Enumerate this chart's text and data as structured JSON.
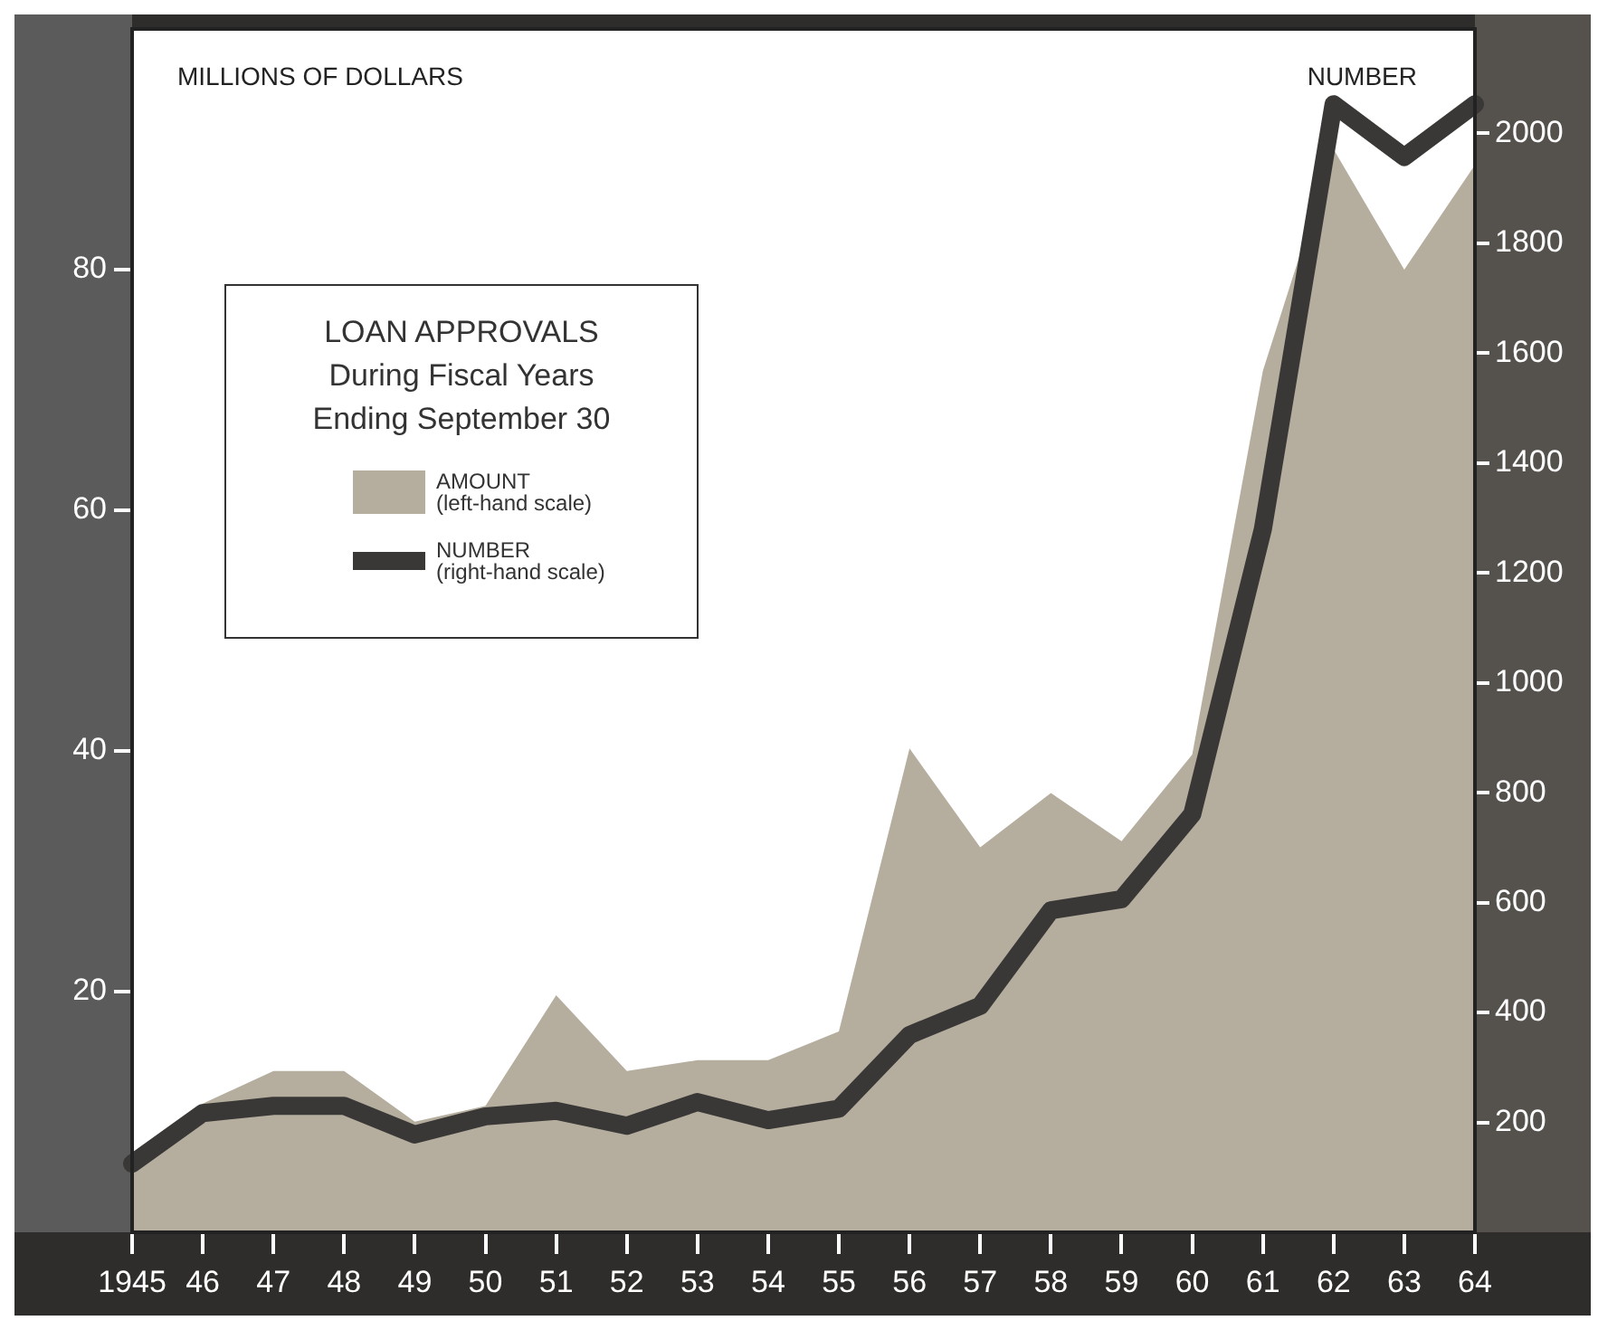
{
  "chart_data": {
    "type": "area",
    "legend_title": "LOAN APPROVALS\nDuring Fiscal Years\nEnding September 30",
    "ylabel": "MILLIONS OF DOLLARS",
    "y2label": "NUMBER",
    "legend": "top left",
    "categories": [
      "1945",
      "46",
      "47",
      "48",
      "49",
      "50",
      "51",
      "52",
      "53",
      "54",
      "55",
      "56",
      "57",
      "58",
      "59",
      "60",
      "61",
      "62",
      "63",
      "64"
    ],
    "series": [
      {
        "name": "AMOUNT\n(left-hand scale)",
        "color": "#b5ae9f",
        "values": [
          5,
          10.7,
          13.4,
          13.4,
          9.2,
          10.5,
          19.7,
          13.4,
          14.3,
          14.3,
          16.7,
          40.2,
          32,
          36.5,
          32.5,
          39.7,
          71.6,
          90,
          80,
          88.7
        ]
      },
      {
        "name": "NUMBER\n(right-hand scale)",
        "type": "line",
        "axis": "y2",
        "color": "#3a3836",
        "values": [
          125,
          217,
          230,
          230,
          178,
          211,
          221,
          194,
          237,
          204,
          225,
          359,
          412,
          586,
          606,
          761,
          1280,
          2053,
          1957,
          2053
        ]
      }
    ],
    "ylim": [
      0,
      100
    ],
    "yticks": [
      20,
      40,
      60,
      80
    ],
    "y2lim": [
      0,
      2190
    ],
    "y2ticks": [
      200,
      400,
      600,
      800,
      1000,
      1200,
      1400,
      1600,
      1800,
      2000
    ]
  }
}
